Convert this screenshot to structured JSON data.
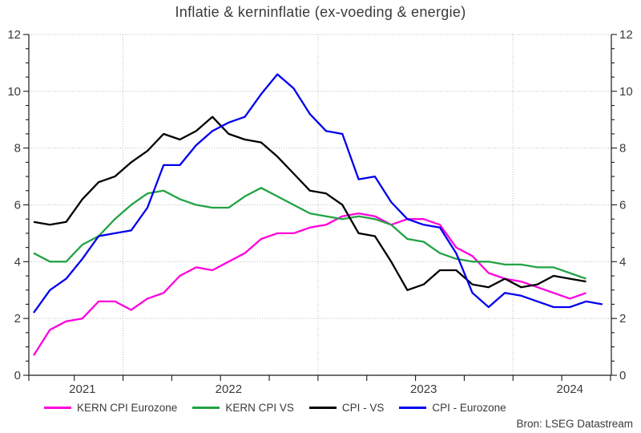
{
  "chart": {
    "title": "Inflatie & kerninflatie (ex-voeding & energie)",
    "source": "Bron: LSEG Datastream"
  },
  "chart_data": {
    "type": "line",
    "frequency": "monthly",
    "x_start": "2021-07",
    "x_year_labels": [
      "2021",
      "2022",
      "2023",
      "2024"
    ],
    "ylim": [
      0,
      12
    ],
    "y_ticks": [
      0,
      2,
      4,
      6,
      8,
      10,
      12
    ],
    "y_minor_tick_step": 0.5,
    "grid": "dotted",
    "grid_color": "#bcbcbc",
    "axis_color": "#1a1a1a",
    "legend_position": "bottom",
    "series": [
      {
        "name": "KERN CPI Eurozone",
        "color": "#FF00DC",
        "values": [
          0.7,
          1.6,
          1.9,
          2.0,
          2.6,
          2.6,
          2.3,
          2.7,
          2.9,
          3.5,
          3.8,
          3.7,
          4.0,
          4.3,
          4.8,
          5.0,
          5.0,
          5.2,
          5.3,
          5.6,
          5.7,
          5.6,
          5.3,
          5.5,
          5.5,
          5.3,
          4.5,
          4.2,
          3.6,
          3.4,
          3.3,
          3.1,
          2.9,
          2.7,
          2.9
        ]
      },
      {
        "name": "KERN CPI VS",
        "color": "#22A345",
        "values": [
          4.3,
          4.0,
          4.0,
          4.6,
          4.9,
          5.5,
          6.0,
          6.4,
          6.5,
          6.2,
          6.0,
          5.9,
          5.9,
          6.3,
          6.6,
          6.3,
          6.0,
          5.7,
          5.6,
          5.5,
          5.6,
          5.5,
          5.3,
          4.8,
          4.7,
          4.3,
          4.1,
          4.0,
          4.0,
          3.9,
          3.9,
          3.8,
          3.8,
          3.6,
          3.4
        ]
      },
      {
        "name": "CPI - VS",
        "color": "#000000",
        "values": [
          5.4,
          5.3,
          5.4,
          6.2,
          6.8,
          7.0,
          7.5,
          7.9,
          8.5,
          8.3,
          8.6,
          9.1,
          8.5,
          8.3,
          8.2,
          7.7,
          7.1,
          6.5,
          6.4,
          6.0,
          5.0,
          4.9,
          4.0,
          3.0,
          3.2,
          3.7,
          3.7,
          3.2,
          3.1,
          3.4,
          3.1,
          3.2,
          3.5,
          3.4,
          3.3
        ]
      },
      {
        "name": "CPI - Eurozone",
        "color": "#0000EE",
        "values": [
          2.2,
          3.0,
          3.4,
          4.1,
          4.9,
          5.0,
          5.1,
          5.9,
          7.4,
          7.4,
          8.1,
          8.6,
          8.9,
          9.1,
          9.9,
          10.6,
          10.1,
          9.2,
          8.6,
          8.5,
          6.9,
          7.0,
          6.1,
          5.5,
          5.3,
          5.2,
          4.3,
          2.9,
          2.4,
          2.9,
          2.8,
          2.6,
          2.4,
          2.4,
          2.6,
          2.5
        ]
      }
    ]
  }
}
